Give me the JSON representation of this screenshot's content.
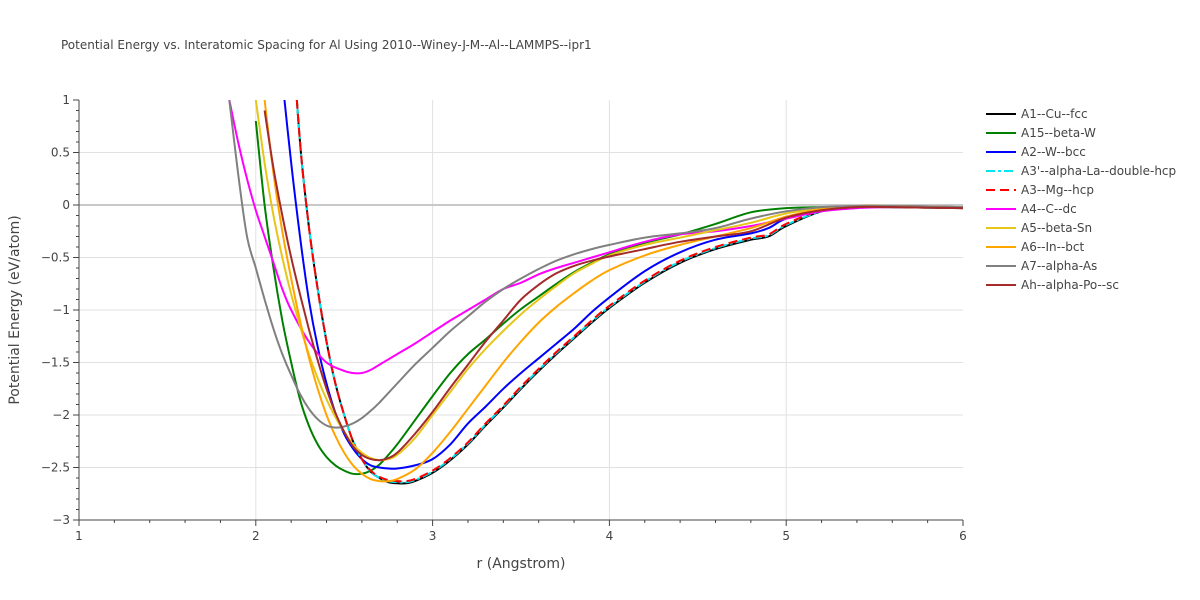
{
  "chart_data": {
    "type": "line",
    "title": "Potential Energy vs. Interatomic Spacing for Al Using 2010--Winey-J-M--Al--LAMMPS--ipr1",
    "xlabel": "r (Angstrom)",
    "ylabel": "Potential Energy (eV/atom)",
    "xlim": [
      1,
      6
    ],
    "ylim": [
      -3,
      1
    ],
    "xticks": [
      "1",
      "2",
      "3",
      "4",
      "5",
      "6"
    ],
    "yticks": [
      "1",
      "0.5",
      "0",
      "−0.5",
      "−1",
      "−1.5",
      "−2",
      "−2.5",
      "−3"
    ],
    "grid": true,
    "legend_position": "right",
    "series": [
      {
        "name": "A1--Cu--fcc",
        "color": "#000000",
        "dash": "solid",
        "x": [
          2.2,
          2.25,
          2.3,
          2.35,
          2.4,
          2.45,
          2.5,
          2.55,
          2.6,
          2.65,
          2.7,
          2.75,
          2.8,
          2.85,
          2.9,
          3.0,
          3.1,
          3.2,
          3.3,
          3.4,
          3.5,
          3.6,
          3.7,
          3.8,
          3.9,
          4.0,
          4.2,
          4.4,
          4.6,
          4.8,
          4.9,
          5.0,
          5.2,
          5.4,
          5.6,
          6.0
        ],
        "y": [
          1.8,
          0.6,
          -0.2,
          -0.8,
          -1.3,
          -1.7,
          -2.0,
          -2.25,
          -2.42,
          -2.54,
          -2.6,
          -2.64,
          -2.65,
          -2.65,
          -2.63,
          -2.55,
          -2.43,
          -2.28,
          -2.1,
          -1.93,
          -1.75,
          -1.58,
          -1.42,
          -1.27,
          -1.12,
          -0.98,
          -0.74,
          -0.55,
          -0.42,
          -0.33,
          -0.3,
          -0.2,
          -0.06,
          -0.02,
          -0.02,
          -0.03
        ]
      },
      {
        "name": "A15--beta-W",
        "color": "#008000",
        "dash": "solid",
        "x": [
          2.0,
          2.05,
          2.1,
          2.15,
          2.2,
          2.25,
          2.3,
          2.35,
          2.4,
          2.45,
          2.5,
          2.55,
          2.6,
          2.65,
          2.7,
          2.75,
          2.8,
          2.9,
          3.0,
          3.1,
          3.2,
          3.3,
          3.4,
          3.5,
          3.6,
          3.7,
          3.8,
          3.9,
          4.0,
          4.2,
          4.4,
          4.6,
          4.8,
          5.0,
          5.2,
          5.4,
          5.6,
          6.0
        ],
        "y": [
          0.8,
          0.0,
          -0.6,
          -1.1,
          -1.5,
          -1.85,
          -2.1,
          -2.28,
          -2.4,
          -2.48,
          -2.53,
          -2.56,
          -2.56,
          -2.53,
          -2.47,
          -2.38,
          -2.28,
          -2.05,
          -1.82,
          -1.6,
          -1.42,
          -1.28,
          -1.13,
          -0.99,
          -0.87,
          -0.75,
          -0.64,
          -0.55,
          -0.47,
          -0.36,
          -0.28,
          -0.18,
          -0.07,
          -0.03,
          -0.02,
          -0.02,
          -0.02,
          -0.02
        ]
      },
      {
        "name": "A2--W--bcc",
        "color": "#0000ff",
        "dash": "solid",
        "x": [
          2.15,
          2.2,
          2.25,
          2.3,
          2.35,
          2.4,
          2.45,
          2.5,
          2.55,
          2.6,
          2.65,
          2.7,
          2.75,
          2.8,
          2.9,
          3.0,
          3.1,
          3.2,
          3.3,
          3.4,
          3.5,
          3.6,
          3.7,
          3.8,
          3.9,
          4.0,
          4.2,
          4.4,
          4.6,
          4.8,
          4.9,
          5.0,
          5.2,
          5.4,
          5.6,
          6.0
        ],
        "y": [
          1.2,
          0.4,
          -0.3,
          -0.9,
          -1.35,
          -1.7,
          -1.98,
          -2.18,
          -2.32,
          -2.42,
          -2.48,
          -2.5,
          -2.51,
          -2.51,
          -2.48,
          -2.42,
          -2.28,
          -2.08,
          -1.92,
          -1.75,
          -1.6,
          -1.46,
          -1.32,
          -1.18,
          -1.02,
          -0.88,
          -0.63,
          -0.45,
          -0.33,
          -0.27,
          -0.22,
          -0.13,
          -0.05,
          -0.02,
          -0.01,
          -0.02
        ]
      },
      {
        "name": "A3'--alpha-La--double-hcp",
        "color": "#00e5ee",
        "dash": "dashdot",
        "x": [
          2.2,
          2.25,
          2.3,
          2.35,
          2.4,
          2.45,
          2.5,
          2.55,
          2.6,
          2.65,
          2.7,
          2.75,
          2.8,
          2.85,
          2.9,
          3.0,
          3.1,
          3.2,
          3.3,
          3.4,
          3.5,
          3.6,
          3.7,
          3.8,
          3.9,
          4.0,
          4.2,
          4.4,
          4.6,
          4.8,
          4.9,
          5.0,
          5.2,
          5.4,
          5.6,
          6.0
        ],
        "y": [
          1.8,
          0.6,
          -0.2,
          -0.8,
          -1.3,
          -1.7,
          -2.0,
          -2.25,
          -2.42,
          -2.54,
          -2.6,
          -2.63,
          -2.64,
          -2.64,
          -2.62,
          -2.54,
          -2.42,
          -2.27,
          -2.09,
          -1.92,
          -1.74,
          -1.57,
          -1.41,
          -1.26,
          -1.11,
          -0.97,
          -0.73,
          -0.54,
          -0.41,
          -0.32,
          -0.29,
          -0.19,
          -0.06,
          -0.02,
          -0.02,
          -0.03
        ]
      },
      {
        "name": "A3--Mg--hcp",
        "color": "#ff0000",
        "dash": "dash",
        "x": [
          2.2,
          2.25,
          2.3,
          2.35,
          2.4,
          2.45,
          2.5,
          2.55,
          2.6,
          2.65,
          2.7,
          2.75,
          2.8,
          2.85,
          2.9,
          3.0,
          3.1,
          3.2,
          3.3,
          3.4,
          3.5,
          3.6,
          3.7,
          3.8,
          3.9,
          4.0,
          4.2,
          4.4,
          4.6,
          4.8,
          4.9,
          5.0,
          5.2,
          5.4,
          5.6,
          6.0
        ],
        "y": [
          1.8,
          0.6,
          -0.2,
          -0.8,
          -1.3,
          -1.7,
          -2.0,
          -2.25,
          -2.42,
          -2.53,
          -2.59,
          -2.62,
          -2.63,
          -2.63,
          -2.61,
          -2.53,
          -2.41,
          -2.26,
          -2.08,
          -1.91,
          -1.73,
          -1.56,
          -1.4,
          -1.25,
          -1.1,
          -0.96,
          -0.72,
          -0.53,
          -0.4,
          -0.31,
          -0.28,
          -0.18,
          -0.05,
          -0.02,
          -0.02,
          -0.03
        ]
      },
      {
        "name": "A4--C--dc",
        "color": "#ff00ff",
        "dash": "solid",
        "x": [
          1.85,
          1.9,
          1.95,
          2.0,
          2.05,
          2.1,
          2.15,
          2.2,
          2.3,
          2.4,
          2.5,
          2.55,
          2.6,
          2.65,
          2.7,
          2.8,
          2.9,
          3.0,
          3.1,
          3.2,
          3.3,
          3.4,
          3.5,
          3.6,
          3.7,
          3.8,
          3.9,
          4.0,
          4.2,
          4.4,
          4.6,
          4.8,
          5.0,
          5.2,
          5.4,
          5.6,
          6.0
        ],
        "y": [
          1.0,
          0.6,
          0.25,
          -0.05,
          -0.3,
          -0.55,
          -0.8,
          -1.0,
          -1.3,
          -1.5,
          -1.58,
          -1.6,
          -1.6,
          -1.57,
          -1.52,
          -1.42,
          -1.32,
          -1.21,
          -1.1,
          -1.0,
          -0.9,
          -0.8,
          -0.74,
          -0.66,
          -0.6,
          -0.55,
          -0.5,
          -0.45,
          -0.35,
          -0.28,
          -0.25,
          -0.2,
          -0.13,
          -0.06,
          -0.03,
          -0.02,
          -0.02
        ]
      },
      {
        "name": "A5--beta-Sn",
        "color": "#e6c619",
        "dash": "solid",
        "x": [
          2.0,
          2.05,
          2.1,
          2.15,
          2.2,
          2.25,
          2.3,
          2.35,
          2.4,
          2.45,
          2.5,
          2.55,
          2.6,
          2.65,
          2.7,
          2.75,
          2.8,
          2.9,
          3.0,
          3.1,
          3.2,
          3.3,
          3.4,
          3.5,
          3.6,
          3.7,
          3.8,
          3.9,
          4.0,
          4.2,
          4.4,
          4.6,
          4.8,
          5.0,
          5.2,
          5.4,
          5.6,
          6.0
        ],
        "y": [
          1.0,
          0.4,
          -0.1,
          -0.5,
          -0.85,
          -1.15,
          -1.42,
          -1.65,
          -1.85,
          -2.02,
          -2.16,
          -2.28,
          -2.36,
          -2.41,
          -2.43,
          -2.42,
          -2.38,
          -2.22,
          -2.0,
          -1.78,
          -1.56,
          -1.37,
          -1.2,
          -1.04,
          -0.9,
          -0.77,
          -0.65,
          -0.56,
          -0.48,
          -0.38,
          -0.31,
          -0.24,
          -0.17,
          -0.08,
          -0.03,
          -0.01,
          -0.01,
          -0.02
        ]
      },
      {
        "name": "A6--In--bct",
        "color": "#ffa500",
        "dash": "solid",
        "x": [
          2.05,
          2.1,
          2.15,
          2.2,
          2.25,
          2.3,
          2.35,
          2.4,
          2.45,
          2.5,
          2.55,
          2.6,
          2.65,
          2.7,
          2.75,
          2.8,
          2.9,
          3.0,
          3.1,
          3.2,
          3.3,
          3.4,
          3.5,
          3.6,
          3.7,
          3.8,
          3.9,
          4.0,
          4.2,
          4.4,
          4.6,
          4.8,
          5.0,
          5.2,
          5.4,
          5.6,
          6.0
        ],
        "y": [
          1.0,
          0.3,
          -0.25,
          -0.7,
          -1.1,
          -1.45,
          -1.75,
          -2.0,
          -2.2,
          -2.36,
          -2.48,
          -2.56,
          -2.61,
          -2.63,
          -2.63,
          -2.61,
          -2.52,
          -2.36,
          -2.16,
          -1.94,
          -1.72,
          -1.5,
          -1.3,
          -1.12,
          -0.97,
          -0.84,
          -0.72,
          -0.62,
          -0.48,
          -0.38,
          -0.3,
          -0.22,
          -0.11,
          -0.04,
          -0.01,
          -0.01,
          -0.02
        ]
      },
      {
        "name": "A7--alpha-As",
        "color": "#808080",
        "dash": "solid",
        "x": [
          1.85,
          1.9,
          1.95,
          2.0,
          2.05,
          2.1,
          2.15,
          2.2,
          2.25,
          2.3,
          2.35,
          2.4,
          2.45,
          2.5,
          2.55,
          2.6,
          2.65,
          2.7,
          2.8,
          2.9,
          3.0,
          3.1,
          3.2,
          3.3,
          3.4,
          3.5,
          3.6,
          3.7,
          3.8,
          3.9,
          4.0,
          4.2,
          4.4,
          4.6,
          4.8,
          5.0,
          5.2,
          5.4,
          5.6,
          6.0
        ],
        "y": [
          1.0,
          0.3,
          -0.3,
          -0.6,
          -0.9,
          -1.18,
          -1.42,
          -1.62,
          -1.8,
          -1.94,
          -2.04,
          -2.1,
          -2.12,
          -2.11,
          -2.08,
          -2.03,
          -1.96,
          -1.88,
          -1.7,
          -1.52,
          -1.36,
          -1.2,
          -1.06,
          -0.92,
          -0.8,
          -0.7,
          -0.61,
          -0.53,
          -0.47,
          -0.42,
          -0.38,
          -0.31,
          -0.27,
          -0.22,
          -0.13,
          -0.06,
          -0.02,
          -0.01,
          -0.01,
          -0.02
        ]
      },
      {
        "name": "Ah--alpha-Po--sc",
        "color": "#a52a2a",
        "dash": "solid",
        "x": [
          2.05,
          2.1,
          2.15,
          2.2,
          2.25,
          2.3,
          2.35,
          2.4,
          2.45,
          2.5,
          2.55,
          2.6,
          2.65,
          2.7,
          2.75,
          2.8,
          2.9,
          3.0,
          3.1,
          3.2,
          3.3,
          3.4,
          3.5,
          3.6,
          3.7,
          3.8,
          3.9,
          4.0,
          4.2,
          4.4,
          4.6,
          4.8,
          5.0,
          5.2,
          5.4,
          5.6,
          6.0
        ],
        "y": [
          0.9,
          0.35,
          -0.1,
          -0.5,
          -0.85,
          -1.18,
          -1.48,
          -1.75,
          -1.98,
          -2.16,
          -2.3,
          -2.38,
          -2.42,
          -2.43,
          -2.41,
          -2.36,
          -2.18,
          -1.97,
          -1.74,
          -1.52,
          -1.3,
          -1.1,
          -0.9,
          -0.76,
          -0.65,
          -0.58,
          -0.53,
          -0.49,
          -0.42,
          -0.35,
          -0.3,
          -0.25,
          -0.12,
          -0.05,
          -0.02,
          -0.02,
          -0.03
        ]
      }
    ]
  }
}
